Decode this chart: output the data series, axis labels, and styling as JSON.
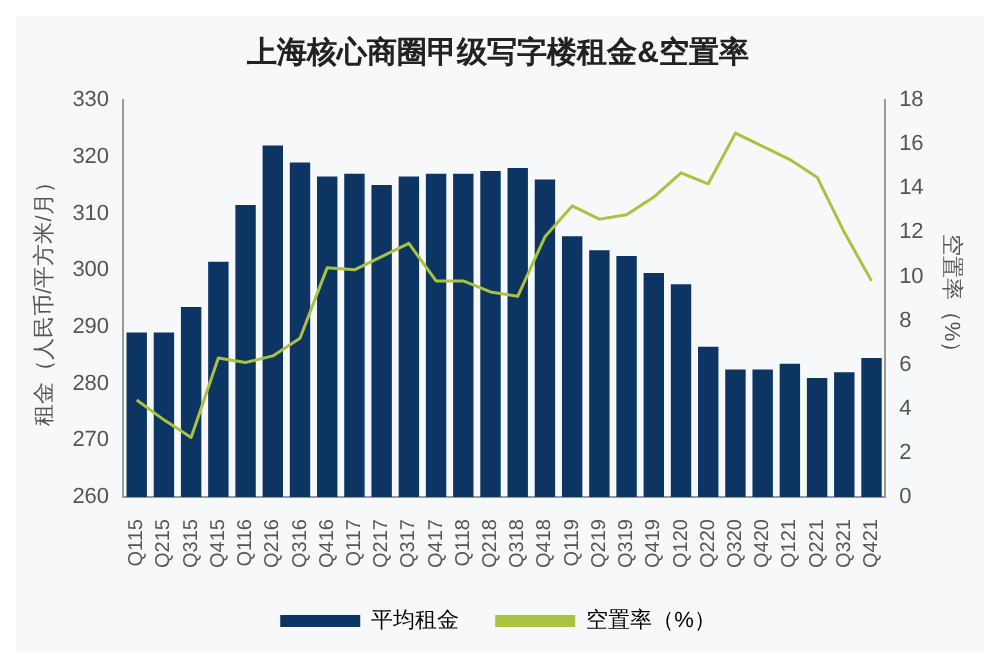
{
  "chart_data": {
    "type": "bar",
    "title": "上海核心商圈甲级写字楼租金&空置率",
    "ylabel": "租金（人民币/平方米/月）",
    "y2label": "空置率（%）",
    "categories": [
      "Q115",
      "Q215",
      "Q315",
      "Q415",
      "Q116",
      "Q216",
      "Q316",
      "Q416",
      "Q117",
      "Q217",
      "Q317",
      "Q417",
      "Q118",
      "Q218",
      "Q318",
      "Q418",
      "Q119",
      "Q219",
      "Q319",
      "Q419",
      "Q120",
      "Q220",
      "Q320",
      "Q420",
      "Q121",
      "Q221",
      "Q321",
      "Q421"
    ],
    "series": [
      {
        "name": "平均租金",
        "color": "#0d3563",
        "values": [
          289,
          289,
          293.5,
          301.5,
          311.5,
          322,
          319,
          316.5,
          317,
          315,
          316.5,
          317,
          317,
          317.5,
          318,
          316,
          306,
          303.5,
          302.5,
          299.5,
          297.5,
          286.5,
          282.5,
          282.5,
          283.5,
          281,
          282,
          284.5
        ]
      },
      {
        "name": "空置率（%）",
        "type": "line",
        "axis": "y2",
        "color": "#a9c23f",
        "values": [
          4.4,
          3.5,
          2.7,
          6.3,
          6.1,
          6.4,
          7.2,
          10.4,
          10.3,
          10.9,
          11.5,
          9.8,
          9.8,
          9.3,
          9.1,
          11.8,
          13.2,
          12.6,
          12.8,
          13.6,
          14.7,
          14.2,
          16.5,
          15.9,
          15.3,
          14.5,
          12.0,
          9.8
        ]
      }
    ],
    "ylim": [
      260,
      330
    ],
    "yticks": [
      260,
      270,
      280,
      290,
      300,
      310,
      320,
      330
    ],
    "y2lim": [
      0,
      18
    ],
    "y2ticks": [
      0,
      2,
      4,
      6,
      8,
      10,
      12,
      14,
      16,
      18
    ],
    "grid": false,
    "legend": "bottom",
    "marker": "none"
  }
}
